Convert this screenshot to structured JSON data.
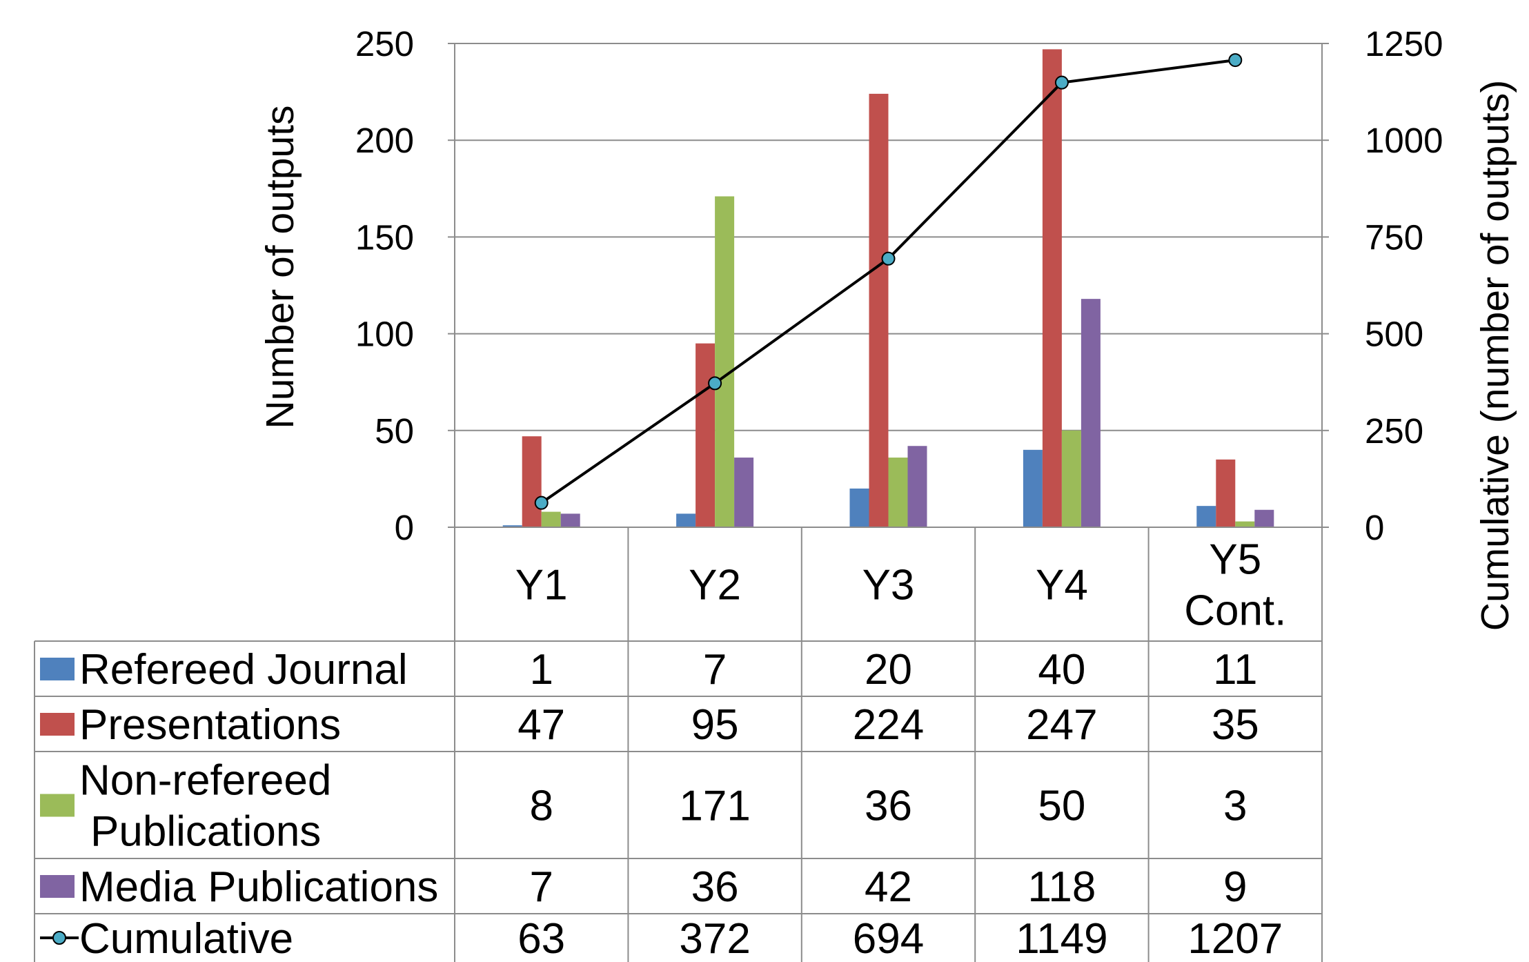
{
  "chart_data": {
    "type": "bar",
    "categories": [
      "Y1",
      "Y2",
      "Y3",
      "Y4",
      "Y5 Cont."
    ],
    "category_lines": [
      [
        "Y1"
      ],
      [
        "Y2"
      ],
      [
        "Y3"
      ],
      [
        "Y4"
      ],
      [
        "Y5",
        "Cont."
      ]
    ],
    "series": [
      {
        "name": "Refereed Journal",
        "label_lines": [
          "Refereed Journal"
        ],
        "type": "bar",
        "axis": "left",
        "color": "#4f81bd",
        "values": [
          1,
          7,
          20,
          40,
          11
        ]
      },
      {
        "name": "Presentations",
        "label_lines": [
          "Presentations"
        ],
        "type": "bar",
        "axis": "left",
        "color": "#c0504d",
        "values": [
          47,
          95,
          224,
          247,
          35
        ]
      },
      {
        "name": "Non-refereed Publications",
        "label_lines": [
          "Non-refereed",
          "Publications"
        ],
        "type": "bar",
        "axis": "left",
        "color": "#9bbb59",
        "values": [
          8,
          171,
          36,
          50,
          3
        ]
      },
      {
        "name": "Media Publications",
        "label_lines": [
          "Media Publications"
        ],
        "type": "bar",
        "axis": "left",
        "color": "#8064a2",
        "values": [
          7,
          36,
          42,
          118,
          9
        ]
      },
      {
        "name": "Cumulative",
        "label_lines": [
          "Cumulative"
        ],
        "type": "line",
        "axis": "right",
        "color": "#000000",
        "marker_color": "#4bacc6",
        "values": [
          63,
          372,
          694,
          1149,
          1207
        ]
      }
    ],
    "ylabel": "Number of outputs",
    "ylabel_right": "Cumulative (number of outputs)",
    "ylim": [
      0,
      250
    ],
    "ylim_right": [
      0,
      1250
    ],
    "yticks": [
      0,
      50,
      100,
      150,
      200,
      250
    ],
    "yticks_right": [
      0,
      250,
      500,
      750,
      1000,
      1250
    ],
    "grid": true,
    "data_table": true
  }
}
